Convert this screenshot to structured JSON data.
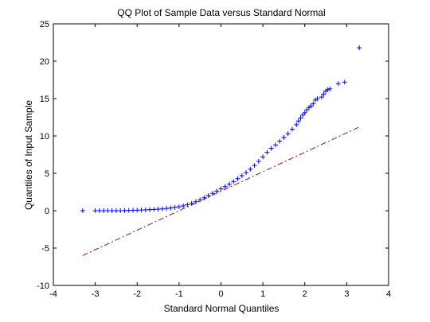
{
  "chart_data": {
    "type": "scatter",
    "title": "QQ Plot of Sample Data versus Standard Normal",
    "xlabel": "Standard Normal Quantiles",
    "ylabel": "Quantiles of Input Sample",
    "xlim": [
      -4,
      4
    ],
    "ylim": [
      -10,
      25
    ],
    "xticks": [
      "-4",
      "-3",
      "-2",
      "-1",
      "0",
      "1",
      "2",
      "3",
      "4"
    ],
    "yticks": [
      "-10",
      "-5",
      "0",
      "5",
      "10",
      "15",
      "20",
      "25"
    ],
    "grid": false,
    "marker": "+",
    "colors": {
      "points": "#0000ff",
      "reference_line": "#8b1a1a",
      "axes": "#000000"
    },
    "reference_line": {
      "style": "dash-dot",
      "x": [
        -3.3,
        3.3
      ],
      "y": [
        -6.0,
        11.2
      ]
    },
    "points": {
      "x": [
        -3.3,
        -3.0,
        -2.9,
        -2.8,
        -2.7,
        -2.6,
        -2.5,
        -2.4,
        -2.3,
        -2.2,
        -2.1,
        -2.0,
        -1.9,
        -1.8,
        -1.7,
        -1.6,
        -1.5,
        -1.4,
        -1.3,
        -1.2,
        -1.1,
        -1.0,
        -0.9,
        -0.8,
        -0.7,
        -0.6,
        -0.5,
        -0.4,
        -0.3,
        -0.2,
        -0.1,
        0.0,
        0.1,
        0.2,
        0.3,
        0.4,
        0.5,
        0.6,
        0.7,
        0.8,
        0.9,
        1.0,
        1.1,
        1.2,
        1.3,
        1.4,
        1.5,
        1.6,
        1.7,
        1.8,
        1.85,
        1.9,
        1.95,
        2.0,
        2.05,
        2.1,
        2.15,
        2.2,
        2.25,
        2.3,
        2.4,
        2.45,
        2.5,
        2.55,
        2.6,
        2.8,
        2.95,
        3.3
      ],
      "y": [
        0.0,
        0.0,
        0.0,
        0.0,
        0.0,
        0.0,
        0.0,
        0.0,
        0.02,
        0.03,
        0.05,
        0.07,
        0.09,
        0.11,
        0.14,
        0.17,
        0.2,
        0.24,
        0.3,
        0.36,
        0.44,
        0.53,
        0.65,
        0.8,
        0.98,
        1.2,
        1.45,
        1.73,
        2.02,
        2.32,
        2.62,
        2.92,
        3.22,
        3.55,
        3.9,
        4.28,
        4.68,
        5.1,
        5.55,
        6.05,
        6.6,
        7.2,
        7.8,
        8.35,
        8.8,
        9.3,
        9.8,
        10.3,
        10.9,
        11.5,
        12.0,
        12.4,
        12.8,
        13.1,
        13.5,
        13.8,
        14.0,
        14.3,
        14.8,
        15.0,
        15.2,
        15.6,
        16.0,
        16.2,
        16.3,
        17.0,
        17.2,
        21.8
      ]
    }
  }
}
